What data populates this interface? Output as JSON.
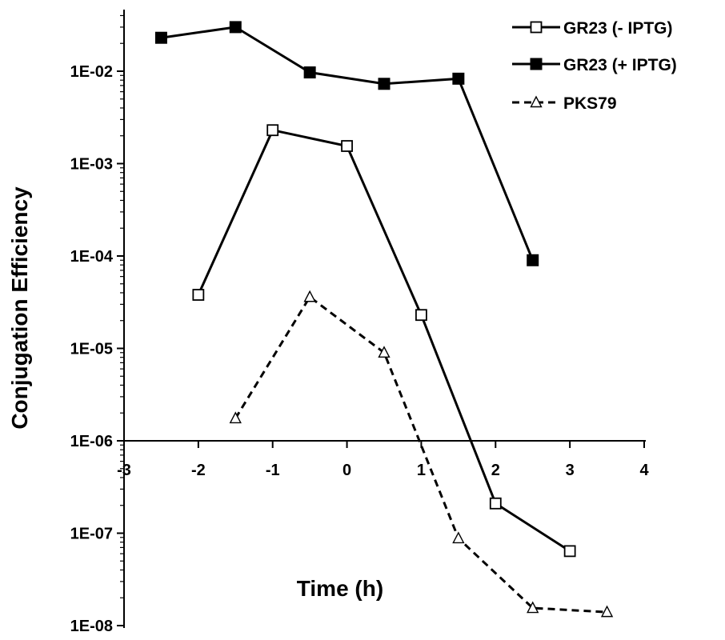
{
  "chart_data": {
    "type": "line",
    "title": "",
    "xlabel": "Time (h)",
    "ylabel": "Conjugation Efficiency",
    "xlim": [
      -3,
      4
    ],
    "ylim": [
      1e-08,
      0.1
    ],
    "y_scale": "log",
    "x_crosses_y_at": 1e-06,
    "grid": false,
    "legend_position": "top-right",
    "x_ticks": [
      -3,
      -2,
      -1,
      0,
      1,
      2,
      3,
      4
    ],
    "x_tick_labels": [
      "-3",
      "-2",
      "-1",
      "0",
      "1",
      "2",
      "3",
      "4"
    ],
    "y_ticks": [
      1e-08,
      1e-07,
      1e-06,
      1e-05,
      0.0001,
      0.001,
      0.01
    ],
    "y_tick_labels": [
      "1E-08",
      "1E-07",
      "1E-06",
      "1E-05",
      "1E-04",
      "1E-03",
      "1E-02"
    ],
    "series": [
      {
        "name": "GR23 (- IPTG)",
        "marker": "open-square",
        "line": "solid",
        "color": "#000000",
        "x": [
          -2,
          -1,
          0,
          1,
          2,
          3
        ],
        "y": [
          3.8e-05,
          0.0023,
          0.00155,
          2.3e-05,
          2.1e-07,
          6.4e-08
        ]
      },
      {
        "name": "GR23 (+ IPTG)",
        "marker": "filled-square",
        "line": "solid",
        "color": "#000000",
        "x": [
          -2.5,
          -1.5,
          -0.5,
          0.5,
          1.5,
          2.5
        ],
        "y": [
          0.023,
          0.03,
          0.0097,
          0.0073,
          0.0083,
          9e-05
        ]
      },
      {
        "name": "PKS79",
        "marker": "open-triangle",
        "line": "dashed",
        "color": "#000000",
        "x": [
          -1.5,
          -0.5,
          0.5,
          1.5,
          2.5,
          3.5
        ],
        "y": [
          1.75e-06,
          3.6e-05,
          9e-06,
          8.8e-08,
          1.55e-08,
          1.4e-08
        ]
      }
    ]
  }
}
